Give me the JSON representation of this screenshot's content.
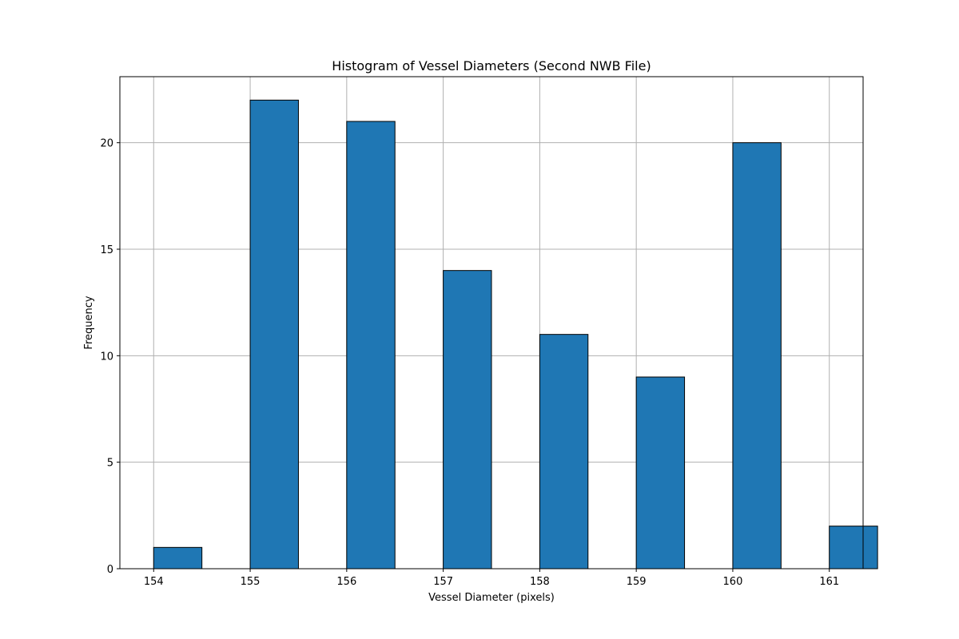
{
  "chart_data": {
    "type": "bar",
    "title": "Histogram of Vessel Diameters (Second NWB File)",
    "xlabel": "Vessel Diameter (pixels)",
    "ylabel": "Frequency",
    "bins": [
      {
        "start": 154.0,
        "end": 154.5,
        "count": 1
      },
      {
        "start": 155.0,
        "end": 155.5,
        "count": 22
      },
      {
        "start": 156.0,
        "end": 156.5,
        "count": 21
      },
      {
        "start": 157.0,
        "end": 157.5,
        "count": 14
      },
      {
        "start": 158.0,
        "end": 158.5,
        "count": 11
      },
      {
        "start": 159.0,
        "end": 159.5,
        "count": 9
      },
      {
        "start": 160.0,
        "end": 160.5,
        "count": 20
      },
      {
        "start": 161.0,
        "end": 161.5,
        "count": 2
      }
    ],
    "xlim": [
      153.65,
      161.35
    ],
    "ylim": [
      0,
      23.1
    ],
    "xticks": [
      154,
      155,
      156,
      157,
      158,
      159,
      160,
      161
    ],
    "yticks": [
      0,
      5,
      10,
      15,
      20
    ],
    "grid": true,
    "bar_color": "#1f77b4",
    "edge_color": "#000000"
  }
}
